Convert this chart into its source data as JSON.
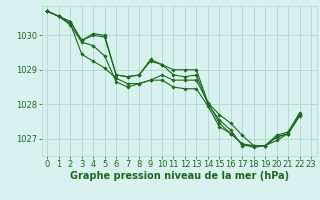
{
  "background_color": "#d8f0ee",
  "grid_color": "#b0d8cc",
  "line_color": "#1a6b1a",
  "marker_color": "#1a6b1a",
  "xlabel": "Graphe pression niveau de la mer (hPa)",
  "xlabel_fontsize": 7,
  "tick_fontsize": 6,
  "ylim": [
    1026.5,
    1030.85
  ],
  "xlim": [
    -0.5,
    23.5
  ],
  "yticks": [
    1027,
    1028,
    1029,
    1030
  ],
  "xticks": [
    0,
    1,
    2,
    3,
    4,
    5,
    6,
    7,
    8,
    9,
    10,
    11,
    12,
    13,
    14,
    15,
    16,
    17,
    18,
    19,
    20,
    21,
    22,
    23
  ],
  "series": [
    [
      1030.7,
      1030.55,
      1030.4,
      1029.85,
      1030.0,
      1029.95,
      1028.85,
      1028.8,
      1028.85,
      1029.25,
      1029.15,
      1029.0,
      1029.0,
      1029.0,
      1028.05,
      1027.7,
      1027.45,
      1027.1,
      1026.8,
      1026.8,
      1027.1,
      1027.2,
      1027.75,
      null
    ],
    [
      1030.7,
      1030.55,
      1030.4,
      1029.85,
      1030.05,
      1030.0,
      1028.85,
      1028.8,
      1028.85,
      1029.3,
      1029.15,
      1028.85,
      1028.8,
      1028.85,
      1028.0,
      1027.55,
      1027.25,
      1026.8,
      1026.8,
      1026.8,
      1027.05,
      1027.15,
      1027.7,
      null
    ],
    [
      1030.7,
      1030.55,
      1030.35,
      1029.45,
      1029.25,
      1029.05,
      1028.75,
      1028.6,
      1028.6,
      1028.7,
      1028.85,
      1028.7,
      1028.7,
      1028.7,
      1028.05,
      1027.45,
      1027.15,
      1026.85,
      1026.8,
      1026.8,
      1027.05,
      1027.15,
      1027.7,
      null
    ],
    [
      1030.7,
      1030.55,
      1030.3,
      1029.8,
      1029.7,
      1029.4,
      1028.65,
      1028.5,
      1028.6,
      1028.7,
      1028.7,
      1028.5,
      1028.45,
      1028.45,
      1027.95,
      1027.35,
      1027.15,
      1026.85,
      1026.75,
      1026.8,
      1026.95,
      1027.15,
      1027.65,
      null
    ]
  ]
}
